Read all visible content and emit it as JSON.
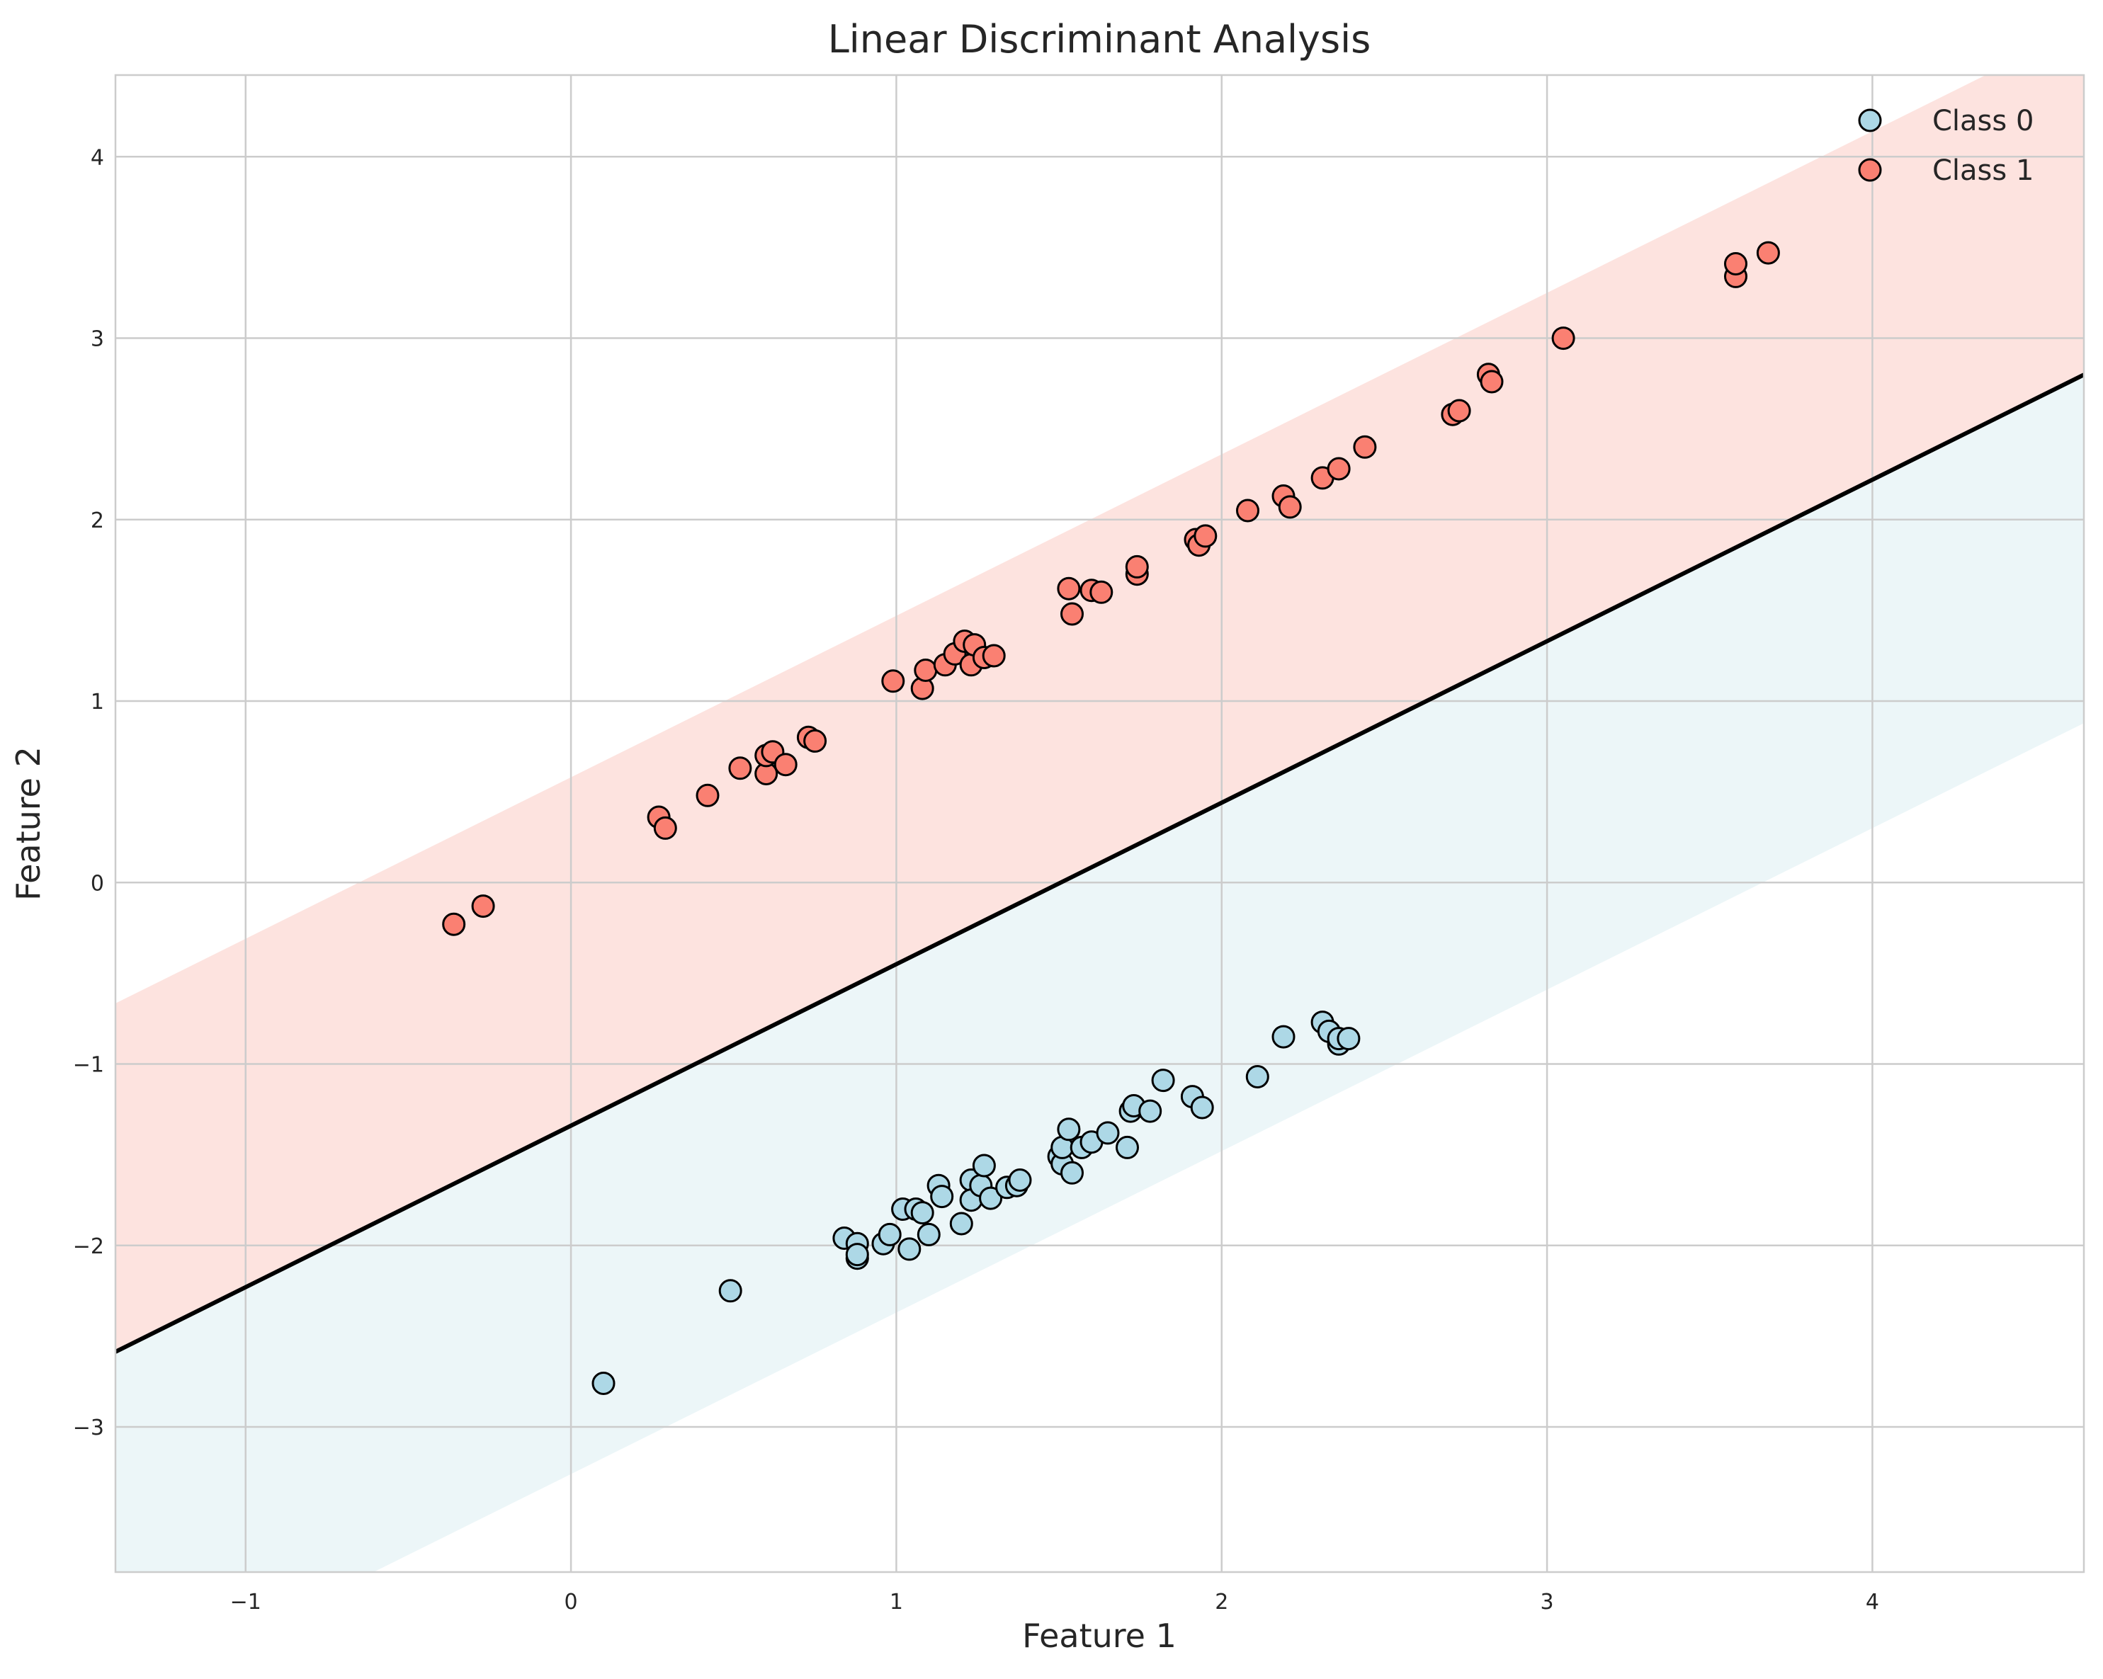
{
  "chart_data": {
    "type": "scatter",
    "title": "Linear Discriminant Analysis",
    "xlabel": "Feature 1",
    "ylabel": "Feature 2",
    "xlim": [
      -1.4,
      4.65
    ],
    "ylim": [
      -3.8,
      4.45
    ],
    "xticks": [
      -1,
      0,
      1,
      2,
      3,
      4
    ],
    "yticks": [
      -3,
      -2,
      -1,
      0,
      1,
      2,
      3,
      4
    ],
    "xtick_labels": [
      "−1",
      "0",
      "1",
      "2",
      "3",
      "4"
    ],
    "ytick_labels": [
      "−3",
      "−2",
      "−1",
      "0",
      "1",
      "2",
      "3",
      "4"
    ],
    "grid": true,
    "legend_position": "top-right",
    "decision_boundary": {
      "slope": 0.89,
      "intercept": -1.34,
      "color": "#000000"
    },
    "regions": [
      {
        "name": "Class 1 region",
        "color": "#fde3df",
        "lower_offset": 0.0,
        "upper_offset": 1.92
      },
      {
        "name": "Class 0 region",
        "color": "#ecf6f8",
        "lower_offset": -1.92,
        "upper_offset": 0.0
      }
    ],
    "series": [
      {
        "name": "Class 0",
        "color": "#add8e6",
        "edge_color": "#000000",
        "points": [
          [
            0.1,
            -2.76
          ],
          [
            0.49,
            -2.25
          ],
          [
            0.84,
            -1.96
          ],
          [
            0.88,
            -1.99
          ],
          [
            0.88,
            -2.07
          ],
          [
            0.88,
            -2.05
          ],
          [
            0.96,
            -1.99
          ],
          [
            0.98,
            -1.94
          ],
          [
            1.02,
            -1.8
          ],
          [
            1.04,
            -2.02
          ],
          [
            1.06,
            -1.8
          ],
          [
            1.08,
            -1.82
          ],
          [
            1.1,
            -1.94
          ],
          [
            1.13,
            -1.67
          ],
          [
            1.14,
            -1.73
          ],
          [
            1.2,
            -1.88
          ],
          [
            1.23,
            -1.64
          ],
          [
            1.23,
            -1.75
          ],
          [
            1.26,
            -1.67
          ],
          [
            1.27,
            -1.56
          ],
          [
            1.29,
            -1.74
          ],
          [
            1.34,
            -1.68
          ],
          [
            1.37,
            -1.67
          ],
          [
            1.38,
            -1.64
          ],
          [
            1.5,
            -1.51
          ],
          [
            1.51,
            -1.55
          ],
          [
            1.51,
            -1.46
          ],
          [
            1.53,
            -1.36
          ],
          [
            1.54,
            -1.6
          ],
          [
            1.57,
            -1.46
          ],
          [
            1.6,
            -1.43
          ],
          [
            1.65,
            -1.38
          ],
          [
            1.71,
            -1.46
          ],
          [
            1.72,
            -1.26
          ],
          [
            1.73,
            -1.23
          ],
          [
            1.78,
            -1.26
          ],
          [
            1.82,
            -1.09
          ],
          [
            1.91,
            -1.18
          ],
          [
            1.94,
            -1.24
          ],
          [
            2.11,
            -1.07
          ],
          [
            2.19,
            -0.85
          ],
          [
            2.31,
            -0.77
          ],
          [
            2.33,
            -0.82
          ],
          [
            2.36,
            -0.89
          ],
          [
            2.36,
            -0.86
          ],
          [
            2.39,
            -0.86
          ]
        ]
      },
      {
        "name": "Class 1",
        "color": "#fa8072",
        "edge_color": "#000000",
        "points": [
          [
            -0.36,
            -0.23
          ],
          [
            -0.27,
            -0.13
          ],
          [
            0.27,
            0.36
          ],
          [
            0.29,
            0.3
          ],
          [
            0.42,
            0.48
          ],
          [
            0.52,
            0.63
          ],
          [
            0.6,
            0.6
          ],
          [
            0.6,
            0.7
          ],
          [
            0.62,
            0.72
          ],
          [
            0.66,
            0.65
          ],
          [
            0.73,
            0.8
          ],
          [
            0.75,
            0.78
          ],
          [
            0.99,
            1.11
          ],
          [
            1.08,
            1.07
          ],
          [
            1.09,
            1.17
          ],
          [
            1.15,
            1.2
          ],
          [
            1.18,
            1.26
          ],
          [
            1.21,
            1.33
          ],
          [
            1.23,
            1.2
          ],
          [
            1.24,
            1.31
          ],
          [
            1.27,
            1.24
          ],
          [
            1.3,
            1.25
          ],
          [
            1.53,
            1.62
          ],
          [
            1.54,
            1.48
          ],
          [
            1.6,
            1.61
          ],
          [
            1.63,
            1.6
          ],
          [
            1.74,
            1.7
          ],
          [
            1.74,
            1.74
          ],
          [
            1.92,
            1.89
          ],
          [
            1.93,
            1.86
          ],
          [
            1.95,
            1.91
          ],
          [
            2.08,
            2.05
          ],
          [
            2.19,
            2.13
          ],
          [
            2.21,
            2.07
          ],
          [
            2.31,
            2.23
          ],
          [
            2.36,
            2.28
          ],
          [
            2.44,
            2.4
          ],
          [
            2.71,
            2.58
          ],
          [
            2.73,
            2.6
          ],
          [
            2.82,
            2.8
          ],
          [
            2.83,
            2.76
          ],
          [
            3.05,
            3.0
          ],
          [
            3.58,
            3.34
          ],
          [
            3.58,
            3.41
          ],
          [
            3.68,
            3.47
          ]
        ]
      }
    ]
  }
}
